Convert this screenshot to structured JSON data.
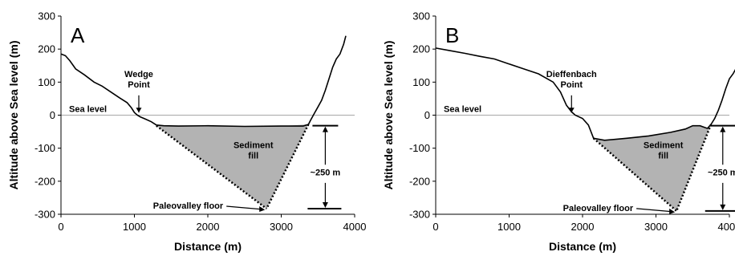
{
  "chart_data": [
    {
      "type": "area",
      "panel_label": "A",
      "xlabel": "Distance (m)",
      "ylabel": "Altitude above Sea level (m)",
      "xlim": [
        0,
        4000
      ],
      "ylim": [
        -300,
        300
      ],
      "x_ticks": [
        0,
        1000,
        2000,
        3000,
        4000
      ],
      "y_ticks": [
        300,
        200,
        100,
        0,
        -100,
        -200,
        -300
      ],
      "grid": false,
      "sea_level": {
        "label": "Sea level",
        "y": 0
      },
      "series": [
        {
          "x": [
            0,
            60,
            120,
            200,
            320,
            450,
            560,
            680,
            800,
            900,
            960,
            1000,
            1040,
            1080,
            1150,
            1230,
            1300,
            1400,
            1600,
            2000,
            2500,
            3000,
            3300,
            3370,
            3400,
            3450,
            3500,
            3550,
            3600,
            3650,
            3700,
            3750,
            3800,
            3850,
            3880
          ],
          "y": [
            185,
            180,
            165,
            140,
            122,
            100,
            88,
            70,
            52,
            38,
            22,
            8,
            0,
            -5,
            -12,
            -20,
            -30,
            -32,
            -33,
            -32,
            -34,
            -33,
            -33,
            -28,
            -15,
            5,
            25,
            45,
            75,
            110,
            145,
            170,
            185,
            215,
            240
          ]
        }
      ],
      "fill": {
        "label_line1": "Sediment",
        "label_line2": "fill",
        "polygon": [
          [
            1300,
            -32
          ],
          [
            1600,
            -33
          ],
          [
            2000,
            -32
          ],
          [
            2500,
            -34
          ],
          [
            3000,
            -33
          ],
          [
            3370,
            -28
          ],
          [
            2800,
            -283
          ]
        ],
        "floor_x": 2800,
        "floor_y": -283,
        "top_y": -32,
        "color": "#b3b3b3"
      },
      "annotations": {
        "point_line1": "Wedge",
        "point_line2": "Point",
        "point_x": 1060,
        "floor_label": "Paleovalley floor",
        "thickness_label": "~250 m",
        "dim_x": 3600
      }
    },
    {
      "type": "area",
      "panel_label": "B",
      "xlabel": "Distance (m)",
      "ylabel": "Altitude above Sea level (m)",
      "xlim": [
        0,
        4000
      ],
      "ylim": [
        -300,
        300
      ],
      "x_ticks": [
        0,
        1000,
        2000,
        3000,
        4000
      ],
      "y_ticks": [
        300,
        200,
        100,
        0,
        -100,
        -200,
        -300
      ],
      "grid": false,
      "sea_level": {
        "label": "Sea level",
        "y": 0
      },
      "series": [
        {
          "x": [
            0,
            200,
            400,
            600,
            800,
            1000,
            1200,
            1400,
            1600,
            1700,
            1780,
            1850,
            1900,
            2000,
            2080,
            2150,
            2300,
            2600,
            2900,
            3200,
            3400,
            3500,
            3600,
            3700,
            3750,
            3800,
            3850,
            3900,
            3950,
            4000,
            4050,
            4100,
            4140
          ],
          "y": [
            203,
            195,
            187,
            178,
            170,
            155,
            140,
            125,
            100,
            70,
            30,
            10,
            0,
            -10,
            -30,
            -70,
            -76,
            -70,
            -63,
            -52,
            -42,
            -32,
            -32,
            -40,
            -28,
            -10,
            15,
            45,
            80,
            110,
            125,
            145,
            160
          ]
        }
      ],
      "fill": {
        "label_line1": "Sediment",
        "label_line2": "fill",
        "polygon": [
          [
            2150,
            -70
          ],
          [
            2300,
            -76
          ],
          [
            2600,
            -70
          ],
          [
            2900,
            -63
          ],
          [
            3200,
            -52
          ],
          [
            3400,
            -42
          ],
          [
            3500,
            -32
          ],
          [
            3600,
            -32
          ],
          [
            3700,
            -40
          ],
          [
            3750,
            -28
          ],
          [
            3280,
            -290
          ]
        ],
        "floor_x": 3280,
        "floor_y": -290,
        "top_y": -32,
        "color": "#b3b3b3"
      },
      "annotations": {
        "point_line1": "Dieffenbach",
        "point_line2": "Point",
        "point_x": 1850,
        "floor_label": "Paleovalley floor",
        "thickness_label": "~250 m",
        "dim_x": 3910
      }
    }
  ]
}
